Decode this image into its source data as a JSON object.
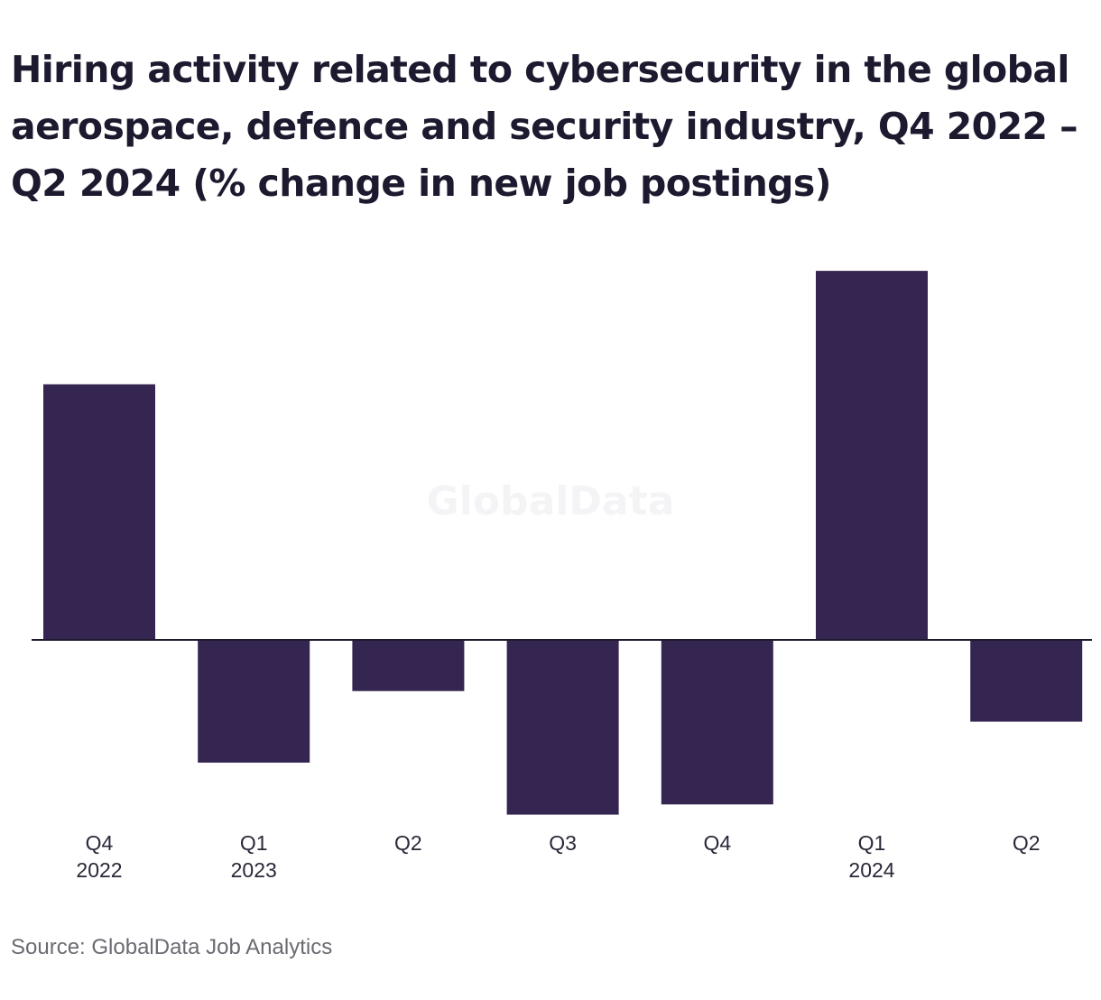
{
  "chart_data": {
    "type": "bar",
    "title": "Hiring activity related to cybersecurity in the global aerospace, defence and security industry, Q4 2022 – Q2 2024 (% change in new job postings)",
    "categories": [
      {
        "quarter": "Q4",
        "year": "2022"
      },
      {
        "quarter": "Q1",
        "year": "2023"
      },
      {
        "quarter": "Q2",
        "year": ""
      },
      {
        "quarter": "Q3",
        "year": ""
      },
      {
        "quarter": "Q4",
        "year": ""
      },
      {
        "quarter": "Q1",
        "year": "2024"
      },
      {
        "quarter": "Q2",
        "year": ""
      }
    ],
    "values": [
      27.5,
      -13.2,
      -5.5,
      -18.8,
      -17.7,
      39.7,
      -8.8
    ],
    "ylim": [
      -20,
      40
    ],
    "xlabel": "",
    "ylabel": "",
    "grid": false,
    "legend": "none",
    "bar_color": "#352551",
    "baseline_color": "#1e1a2e"
  },
  "watermark": "GlobalData",
  "source": "Source: GlobalData Job Analytics"
}
